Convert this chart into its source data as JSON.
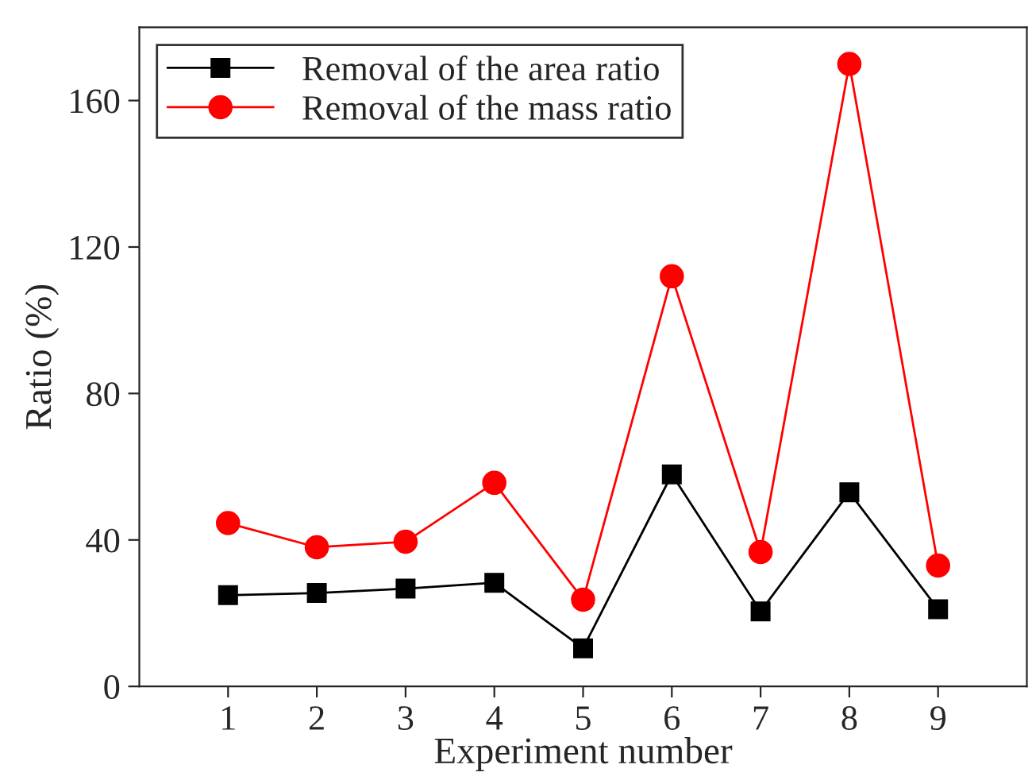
{
  "chart_data": {
    "type": "line",
    "xlabel": "Experiment number",
    "ylabel": "Ratio (%)",
    "x": [
      1,
      2,
      3,
      4,
      5,
      6,
      7,
      8,
      9
    ],
    "series": [
      {
        "name": "Removal of the area ratio",
        "color": "#000000",
        "marker": "square",
        "values": [
          24.9,
          25.5,
          26.7,
          28.3,
          10.4,
          57.9,
          20.5,
          53,
          21.1
        ]
      },
      {
        "name": "Removal of the mass ratio",
        "color": "#ff0000",
        "marker": "circle",
        "values": [
          44.6,
          38,
          39.5,
          55.6,
          23.7,
          112,
          36.7,
          170,
          33
        ]
      }
    ],
    "xlim": [
      0,
      10
    ],
    "ylim": [
      0,
      180
    ],
    "xticks": [
      1,
      2,
      3,
      4,
      5,
      6,
      7,
      8,
      9
    ],
    "yticks": [
      0,
      40,
      80,
      120,
      160
    ],
    "grid": false,
    "legend": "top left",
    "line_style": "solid"
  }
}
